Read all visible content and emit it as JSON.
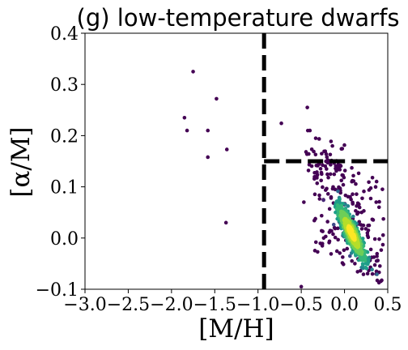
{
  "chart_data": {
    "type": "scatter",
    "title": "(g) low-temperature dwarfs",
    "xlabel": "[M/H]",
    "ylabel": "[α/M]",
    "xlim": [
      -3.0,
      0.5
    ],
    "ylim": [
      -0.1,
      0.4
    ],
    "xticks": [
      "−3.0",
      "−2.5",
      "−2.0",
      "−1.5",
      "−1.0",
      "−0.5",
      "0.0",
      "0.5"
    ],
    "yticks": [
      "−0.1",
      "0.0",
      "0.1",
      "0.2",
      "0.3",
      "0.4"
    ],
    "xtick_values": [
      -3.0,
      -2.5,
      -2.0,
      -1.5,
      -1.0,
      -0.5,
      0.0,
      0.5
    ],
    "ytick_values": [
      -0.1,
      0.0,
      0.1,
      0.2,
      0.3,
      0.4
    ],
    "grid": false,
    "colormap": "viridis",
    "color_encodes": "point density",
    "sparse_points": [
      {
        "x": -1.75,
        "y": 0.325
      },
      {
        "x": -1.48,
        "y": 0.272
      },
      {
        "x": -1.85,
        "y": 0.235
      },
      {
        "x": -1.82,
        "y": 0.21
      },
      {
        "x": -1.58,
        "y": 0.21
      },
      {
        "x": -1.36,
        "y": 0.173
      },
      {
        "x": -1.58,
        "y": 0.158
      },
      {
        "x": -1.37,
        "y": 0.03
      },
      {
        "x": -0.73,
        "y": 0.224
      },
      {
        "x": -0.43,
        "y": 0.255
      },
      {
        "x": -0.5,
        "y": -0.095
      },
      {
        "x": -0.47,
        "y": 0.07
      },
      {
        "x": -0.4,
        "y": 0.21
      }
    ],
    "dense_cluster": {
      "center_x": 0.08,
      "center_y": 0.01,
      "trend": "anti-correlated",
      "spread_x": 0.25,
      "spread_y": 0.05
    },
    "reference_lines": [
      {
        "orientation": "vertical",
        "x": -0.93,
        "y_from": -0.1,
        "y_to": 0.4,
        "style": "dashed",
        "color": "#000000"
      },
      {
        "orientation": "horizontal",
        "y": 0.15,
        "x_from": -0.93,
        "x_to": 0.5,
        "style": "dashed",
        "color": "#000000"
      }
    ]
  }
}
